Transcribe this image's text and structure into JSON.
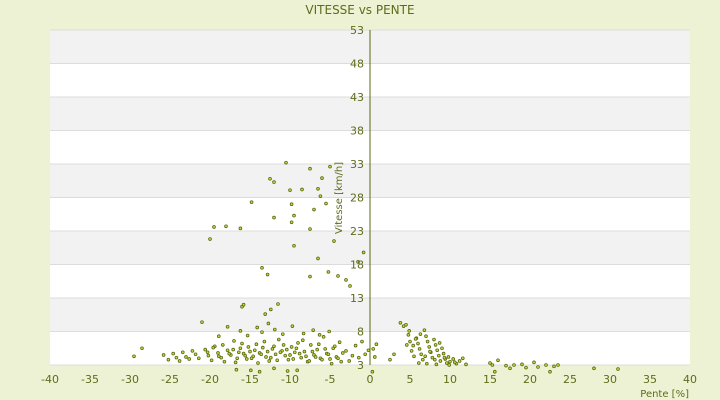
{
  "chart_data": {
    "type": "scatter",
    "title": "VITESSE vs PENTE",
    "xlabel": "Pente [%]",
    "ylabel": "Vitesse [km/h]",
    "xlim": [
      -40,
      40
    ],
    "ylim": [
      3,
      53
    ],
    "x_ticks": [
      -40,
      -35,
      -30,
      -25,
      -20,
      -15,
      -10,
      -5,
      0,
      5,
      10,
      15,
      20,
      25,
      30,
      35,
      40
    ],
    "y_ticks": [
      3,
      8,
      13,
      18,
      23,
      28,
      33,
      38,
      43,
      48,
      53
    ],
    "grid": true,
    "legend": "none",
    "colors": {
      "background": "#eef2d4",
      "plot_band_light": "#ffffff",
      "plot_band_dark": "#f2f2f2",
      "grid": "#dcdcdc",
      "text": "#5e6b1a",
      "point_fill": "#c8d840",
      "point_stroke": "#5a6a10",
      "axis": "#5a6a10"
    },
    "series": [
      {
        "values": [
          [
            -29.5,
            4.3
          ],
          [
            -28.5,
            5.5
          ],
          [
            -25.8,
            4.5
          ],
          [
            -25.2,
            3.8
          ],
          [
            -24.6,
            4.7
          ],
          [
            -24.2,
            4.1
          ],
          [
            -23.8,
            3.6
          ],
          [
            -23.4,
            4.9
          ],
          [
            -23.0,
            4.2
          ],
          [
            -22.6,
            3.9
          ],
          [
            -22.2,
            5.1
          ],
          [
            -21.8,
            4.6
          ],
          [
            -21.4,
            4.0
          ],
          [
            -21.0,
            9.4
          ],
          [
            -20.6,
            5.3
          ],
          [
            -20.2,
            4.4
          ],
          [
            -19.8,
            3.7
          ],
          [
            -19.4,
            5.8
          ],
          [
            -19.0,
            4.8
          ],
          [
            -18.6,
            4.1
          ],
          [
            -18.2,
            3.5
          ],
          [
            -17.8,
            5.2
          ],
          [
            -17.4,
            4.5
          ],
          [
            -17.0,
            6.6
          ],
          [
            -16.6,
            4.0
          ],
          [
            -16.2,
            5.5
          ],
          [
            -15.8,
            4.7
          ],
          [
            -15.4,
            3.9
          ],
          [
            -15.0,
            5.0
          ],
          [
            -14.6,
            4.3
          ],
          [
            -14.2,
            6.1
          ],
          [
            -13.8,
            4.8
          ],
          [
            -13.4,
            5.6
          ],
          [
            -13.0,
            4.2
          ],
          [
            -12.6,
            3.6
          ],
          [
            -12.2,
            5.4
          ],
          [
            -11.8,
            4.6
          ],
          [
            -11.4,
            6.8
          ],
          [
            -11.0,
            5.1
          ],
          [
            -10.6,
            4.4
          ],
          [
            -10.2,
            3.8
          ],
          [
            -9.8,
            5.7
          ],
          [
            -9.4,
            4.9
          ],
          [
            -9.0,
            6.3
          ],
          [
            -8.6,
            4.1
          ],
          [
            -8.2,
            5.0
          ],
          [
            -7.8,
            3.5
          ],
          [
            -7.4,
            6.0
          ],
          [
            -7.0,
            4.5
          ],
          [
            -6.6,
            5.3
          ],
          [
            -6.2,
            4.0
          ],
          [
            -5.8,
            7.2
          ],
          [
            -5.4,
            4.7
          ],
          [
            -5.0,
            3.9
          ],
          [
            -4.6,
            5.5
          ],
          [
            -4.2,
            4.2
          ],
          [
            -3.8,
            6.4
          ],
          [
            -3.4,
            4.8
          ],
          [
            -3.0,
            5.1
          ],
          [
            -2.6,
            3.6
          ],
          [
            -2.2,
            4.4
          ],
          [
            -1.8,
            5.9
          ],
          [
            -1.4,
            4.1
          ],
          [
            -1.0,
            6.5
          ],
          [
            -0.6,
            4.6
          ],
          [
            -0.2,
            5.2
          ],
          [
            -20.3,
            4.9
          ],
          [
            -19.6,
            5.6
          ],
          [
            -18.9,
            4.3
          ],
          [
            -18.4,
            6.0
          ],
          [
            -17.6,
            4.7
          ],
          [
            -17.1,
            5.3
          ],
          [
            -16.8,
            3.4
          ],
          [
            -16.4,
            4.9
          ],
          [
            -16.0,
            6.2
          ],
          [
            -15.6,
            4.4
          ],
          [
            -15.2,
            5.7
          ],
          [
            -14.8,
            4.0
          ],
          [
            -14.4,
            5.2
          ],
          [
            -14.0,
            3.3
          ],
          [
            -13.6,
            4.6
          ],
          [
            -13.2,
            6.5
          ],
          [
            -12.8,
            5.0
          ],
          [
            -12.4,
            4.1
          ],
          [
            -12.0,
            5.8
          ],
          [
            -11.6,
            3.7
          ],
          [
            -11.2,
            4.9
          ],
          [
            -10.8,
            6.0
          ],
          [
            -10.4,
            5.3
          ],
          [
            -10.0,
            4.5
          ],
          [
            -9.6,
            3.9
          ],
          [
            -9.2,
            5.5
          ],
          [
            -8.8,
            4.7
          ],
          [
            -8.4,
            6.7
          ],
          [
            -8.0,
            4.3
          ],
          [
            -7.6,
            3.6
          ],
          [
            -7.2,
            5.0
          ],
          [
            -6.8,
            4.2
          ],
          [
            -6.4,
            6.1
          ],
          [
            -6.0,
            3.8
          ],
          [
            -5.6,
            5.4
          ],
          [
            -5.2,
            4.6
          ],
          [
            -4.8,
            3.2
          ],
          [
            -4.4,
            5.8
          ],
          [
            -4.0,
            4.0
          ],
          [
            -3.6,
            3.5
          ],
          [
            -16.2,
            8.1
          ],
          [
            -15.3,
            7.4
          ],
          [
            -14.1,
            8.6
          ],
          [
            -13.5,
            7.9
          ],
          [
            -12.7,
            9.2
          ],
          [
            -11.9,
            8.3
          ],
          [
            -10.9,
            7.6
          ],
          [
            -9.7,
            8.8
          ],
          [
            -8.3,
            7.7
          ],
          [
            -7.1,
            8.2
          ],
          [
            -6.3,
            7.5
          ],
          [
            -5.1,
            8.0
          ],
          [
            -17.8,
            8.7
          ],
          [
            -18.9,
            7.3
          ],
          [
            -13.1,
            10.6
          ],
          [
            -12.4,
            11.3
          ],
          [
            -11.5,
            12.1
          ],
          [
            -16.0,
            11.7
          ],
          [
            -15.8,
            12.0
          ],
          [
            -14.9,
            2.2
          ],
          [
            -13.8,
            2.0
          ],
          [
            -16.7,
            2.3
          ],
          [
            -10.3,
            2.1
          ],
          [
            -9.1,
            2.2
          ],
          [
            -12.0,
            2.5
          ],
          [
            -10.5,
            33.2
          ],
          [
            -12.0,
            30.3
          ],
          [
            -12.5,
            30.8
          ],
          [
            -7.5,
            32.3
          ],
          [
            -5.0,
            32.6
          ],
          [
            -6.0,
            30.9
          ],
          [
            -6.5,
            29.3
          ],
          [
            -8.5,
            29.2
          ],
          [
            -10.0,
            29.1
          ],
          [
            -6.2,
            28.2
          ],
          [
            -14.8,
            27.3
          ],
          [
            -5.5,
            27.1
          ],
          [
            -9.8,
            27.0
          ],
          [
            -7.0,
            26.2
          ],
          [
            -9.5,
            25.3
          ],
          [
            -12.0,
            25.0
          ],
          [
            -9.8,
            24.3
          ],
          [
            -18.0,
            23.7
          ],
          [
            -19.5,
            23.6
          ],
          [
            -16.2,
            23.4
          ],
          [
            -20.0,
            21.8
          ],
          [
            -7.5,
            23.3
          ],
          [
            -4.5,
            21.5
          ],
          [
            -9.5,
            20.8
          ],
          [
            -0.8,
            19.8
          ],
          [
            -6.5,
            18.9
          ],
          [
            -1.5,
            18.4
          ],
          [
            -13.5,
            17.5
          ],
          [
            -12.8,
            16.5
          ],
          [
            -5.2,
            16.9
          ],
          [
            -4.0,
            16.3
          ],
          [
            -7.5,
            16.2
          ],
          [
            -2.5,
            14.8
          ],
          [
            -3.0,
            15.7
          ],
          [
            0.3,
            2.0
          ],
          [
            0.4,
            5.4
          ],
          [
            0.6,
            4.2
          ],
          [
            0.8,
            6.1
          ],
          [
            2.5,
            3.8
          ],
          [
            3.0,
            4.6
          ],
          [
            3.8,
            9.3
          ],
          [
            4.2,
            8.8
          ],
          [
            4.5,
            9.0
          ],
          [
            4.8,
            7.5
          ],
          [
            5.0,
            6.5
          ],
          [
            5.2,
            5.1
          ],
          [
            5.5,
            4.3
          ],
          [
            5.8,
            7.0
          ],
          [
            6.0,
            6.2
          ],
          [
            6.2,
            5.4
          ],
          [
            6.4,
            4.6
          ],
          [
            6.6,
            3.8
          ],
          [
            6.8,
            8.2
          ],
          [
            7.0,
            7.3
          ],
          [
            7.2,
            6.5
          ],
          [
            7.4,
            5.7
          ],
          [
            7.6,
            4.9
          ],
          [
            7.8,
            4.1
          ],
          [
            8.0,
            6.8
          ],
          [
            8.2,
            6.0
          ],
          [
            8.4,
            5.2
          ],
          [
            8.6,
            4.4
          ],
          [
            8.8,
            3.6
          ],
          [
            9.0,
            5.5
          ],
          [
            9.2,
            4.7
          ],
          [
            9.4,
            3.9
          ],
          [
            9.6,
            3.3
          ],
          [
            9.8,
            4.2
          ],
          [
            10.0,
            3.5
          ],
          [
            10.4,
            3.9
          ],
          [
            10.8,
            3.2
          ],
          [
            11.2,
            3.6
          ],
          [
            11.6,
            4.0
          ],
          [
            12.0,
            3.1
          ],
          [
            4.6,
            6.0
          ],
          [
            5.4,
            5.9
          ],
          [
            6.3,
            7.6
          ],
          [
            6.9,
            4.3
          ],
          [
            7.5,
            5.0
          ],
          [
            8.1,
            3.8
          ],
          [
            8.7,
            6.3
          ],
          [
            9.3,
            4.1
          ],
          [
            9.9,
            3.0
          ],
          [
            10.6,
            3.4
          ],
          [
            6.1,
            3.3
          ],
          [
            7.1,
            3.2
          ],
          [
            8.3,
            3.1
          ],
          [
            5.7,
            6.9
          ],
          [
            4.9,
            8.1
          ],
          [
            15.0,
            3.3
          ],
          [
            15.3,
            3.0
          ],
          [
            15.6,
            2.0
          ],
          [
            16.0,
            3.7
          ],
          [
            17.0,
            2.9
          ],
          [
            17.5,
            2.5
          ],
          [
            18.0,
            3.0
          ],
          [
            19.0,
            3.1
          ],
          [
            19.5,
            2.6
          ],
          [
            20.5,
            3.4
          ],
          [
            21.0,
            2.7
          ],
          [
            22.0,
            3.0
          ],
          [
            22.5,
            2.0
          ],
          [
            23.0,
            2.8
          ],
          [
            23.5,
            3.0
          ],
          [
            28.0,
            2.5
          ],
          [
            31.0,
            2.4
          ]
        ]
      }
    ]
  }
}
